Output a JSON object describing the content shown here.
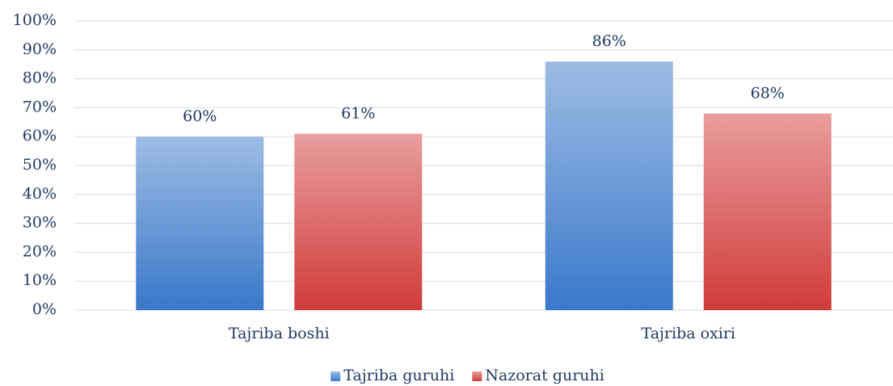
{
  "chart_data": {
    "type": "bar",
    "categories": [
      "Tajriba boshi",
      "Tajriba oxiri"
    ],
    "series": [
      {
        "name": "Tajriba guruhi",
        "color": "#3a78c9",
        "values": [
          60,
          86
        ],
        "value_labels": [
          "60%",
          "86%"
        ]
      },
      {
        "name": "Nazorat guruhi",
        "color": "#d03c3a",
        "values": [
          61,
          68
        ],
        "value_labels": [
          "61%",
          "68%"
        ]
      }
    ],
    "ylim": [
      0,
      100
    ],
    "yticks": [
      {
        "value": 0,
        "label": "0%"
      },
      {
        "value": 10,
        "label": "10%"
      },
      {
        "value": 20,
        "label": "20%"
      },
      {
        "value": 30,
        "label": "30%"
      },
      {
        "value": 40,
        "label": "40%"
      },
      {
        "value": 50,
        "label": "50%"
      },
      {
        "value": 60,
        "label": "60%"
      },
      {
        "value": 70,
        "label": "70%"
      },
      {
        "value": 80,
        "label": "80%"
      },
      {
        "value": 90,
        "label": "90%"
      },
      {
        "value": 100,
        "label": "100%"
      }
    ],
    "grid": true,
    "legend": "bottom"
  }
}
